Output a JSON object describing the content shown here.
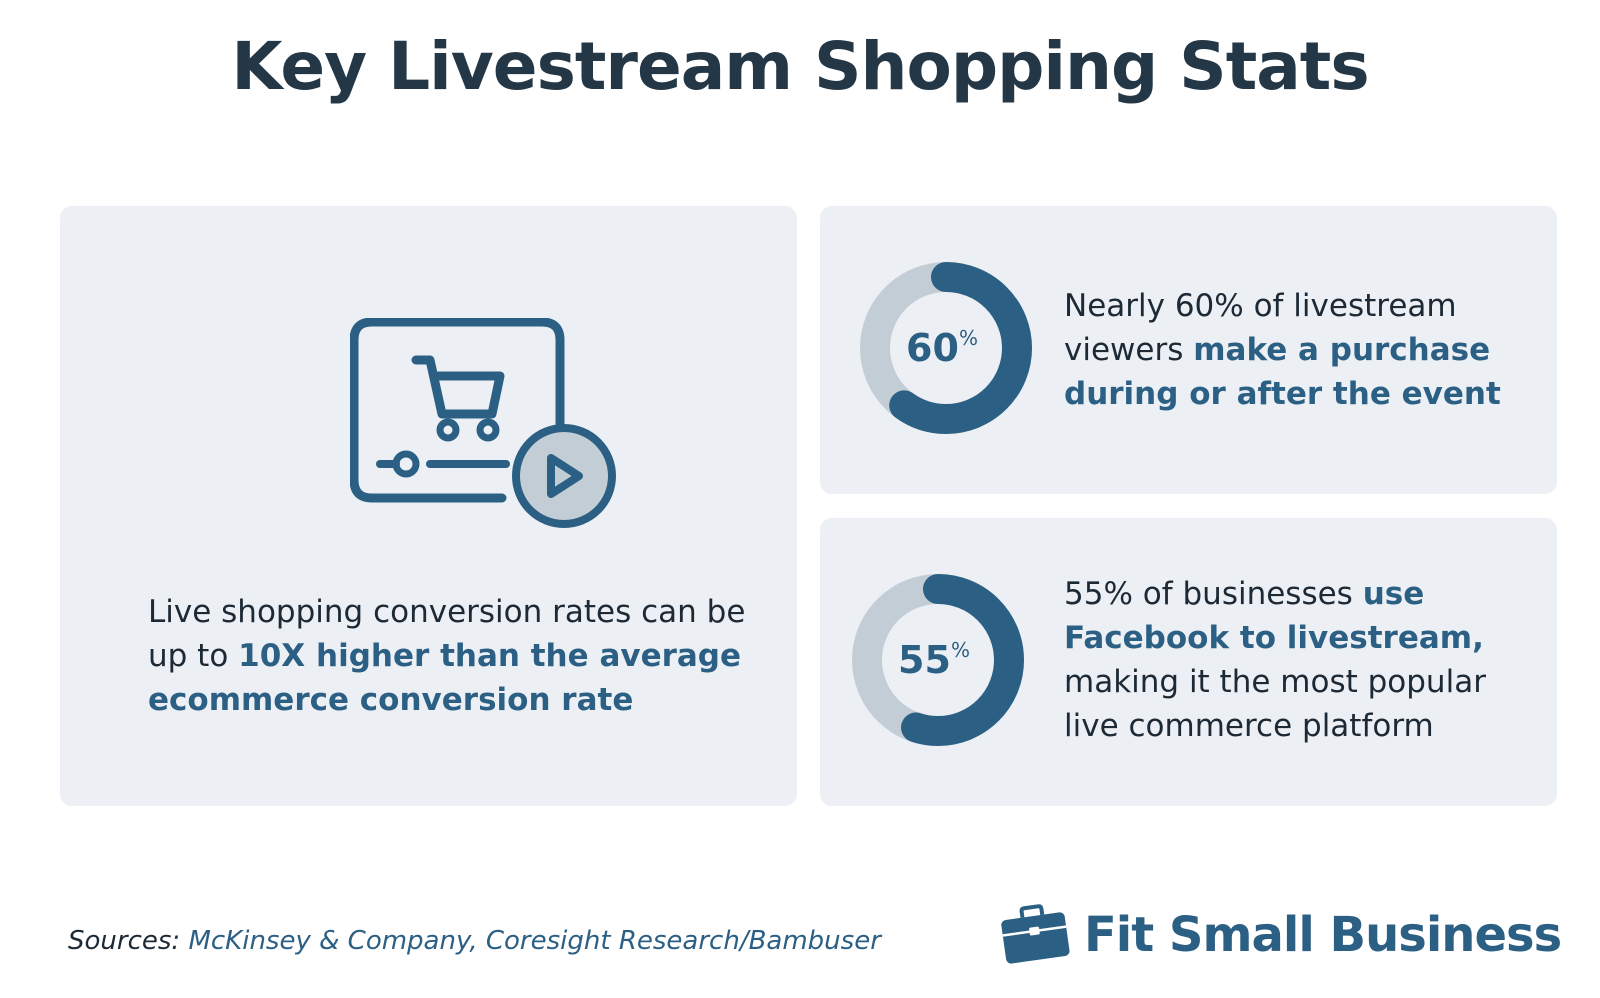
{
  "title": "Key Livestream Shopping Stats",
  "left_card": {
    "icon": "cart-video-icon",
    "text_plain": "Live shopping conversion rates can be up to",
    "text_highlight": "10X higher than the average ecommerce conversion rate"
  },
  "stat_1": {
    "value": 60,
    "value_label": "60",
    "percent_sign": "%",
    "text_plain": "Nearly 60% of livestream viewers",
    "text_highlight": "make a purchase during or after the event"
  },
  "stat_2": {
    "value": 55,
    "value_label": "55",
    "percent_sign": "%",
    "text_plain_start": "55% of businesses",
    "text_highlight": "use Facebook to livestream,",
    "text_plain_end": "making it the most popular live commerce platform"
  },
  "footer": {
    "sources_label": "Sources:",
    "sources_names": "McKinsey & Company, Coresight Research/Bambuser",
    "brand_icon": "briefcase-icon",
    "brand_name": "Fit Small Business"
  },
  "colors": {
    "accent": "#2c5f84",
    "dark_text": "#1d2a36",
    "card_bg": "#ecf0f5",
    "ring_track": "#c3cdd5"
  }
}
